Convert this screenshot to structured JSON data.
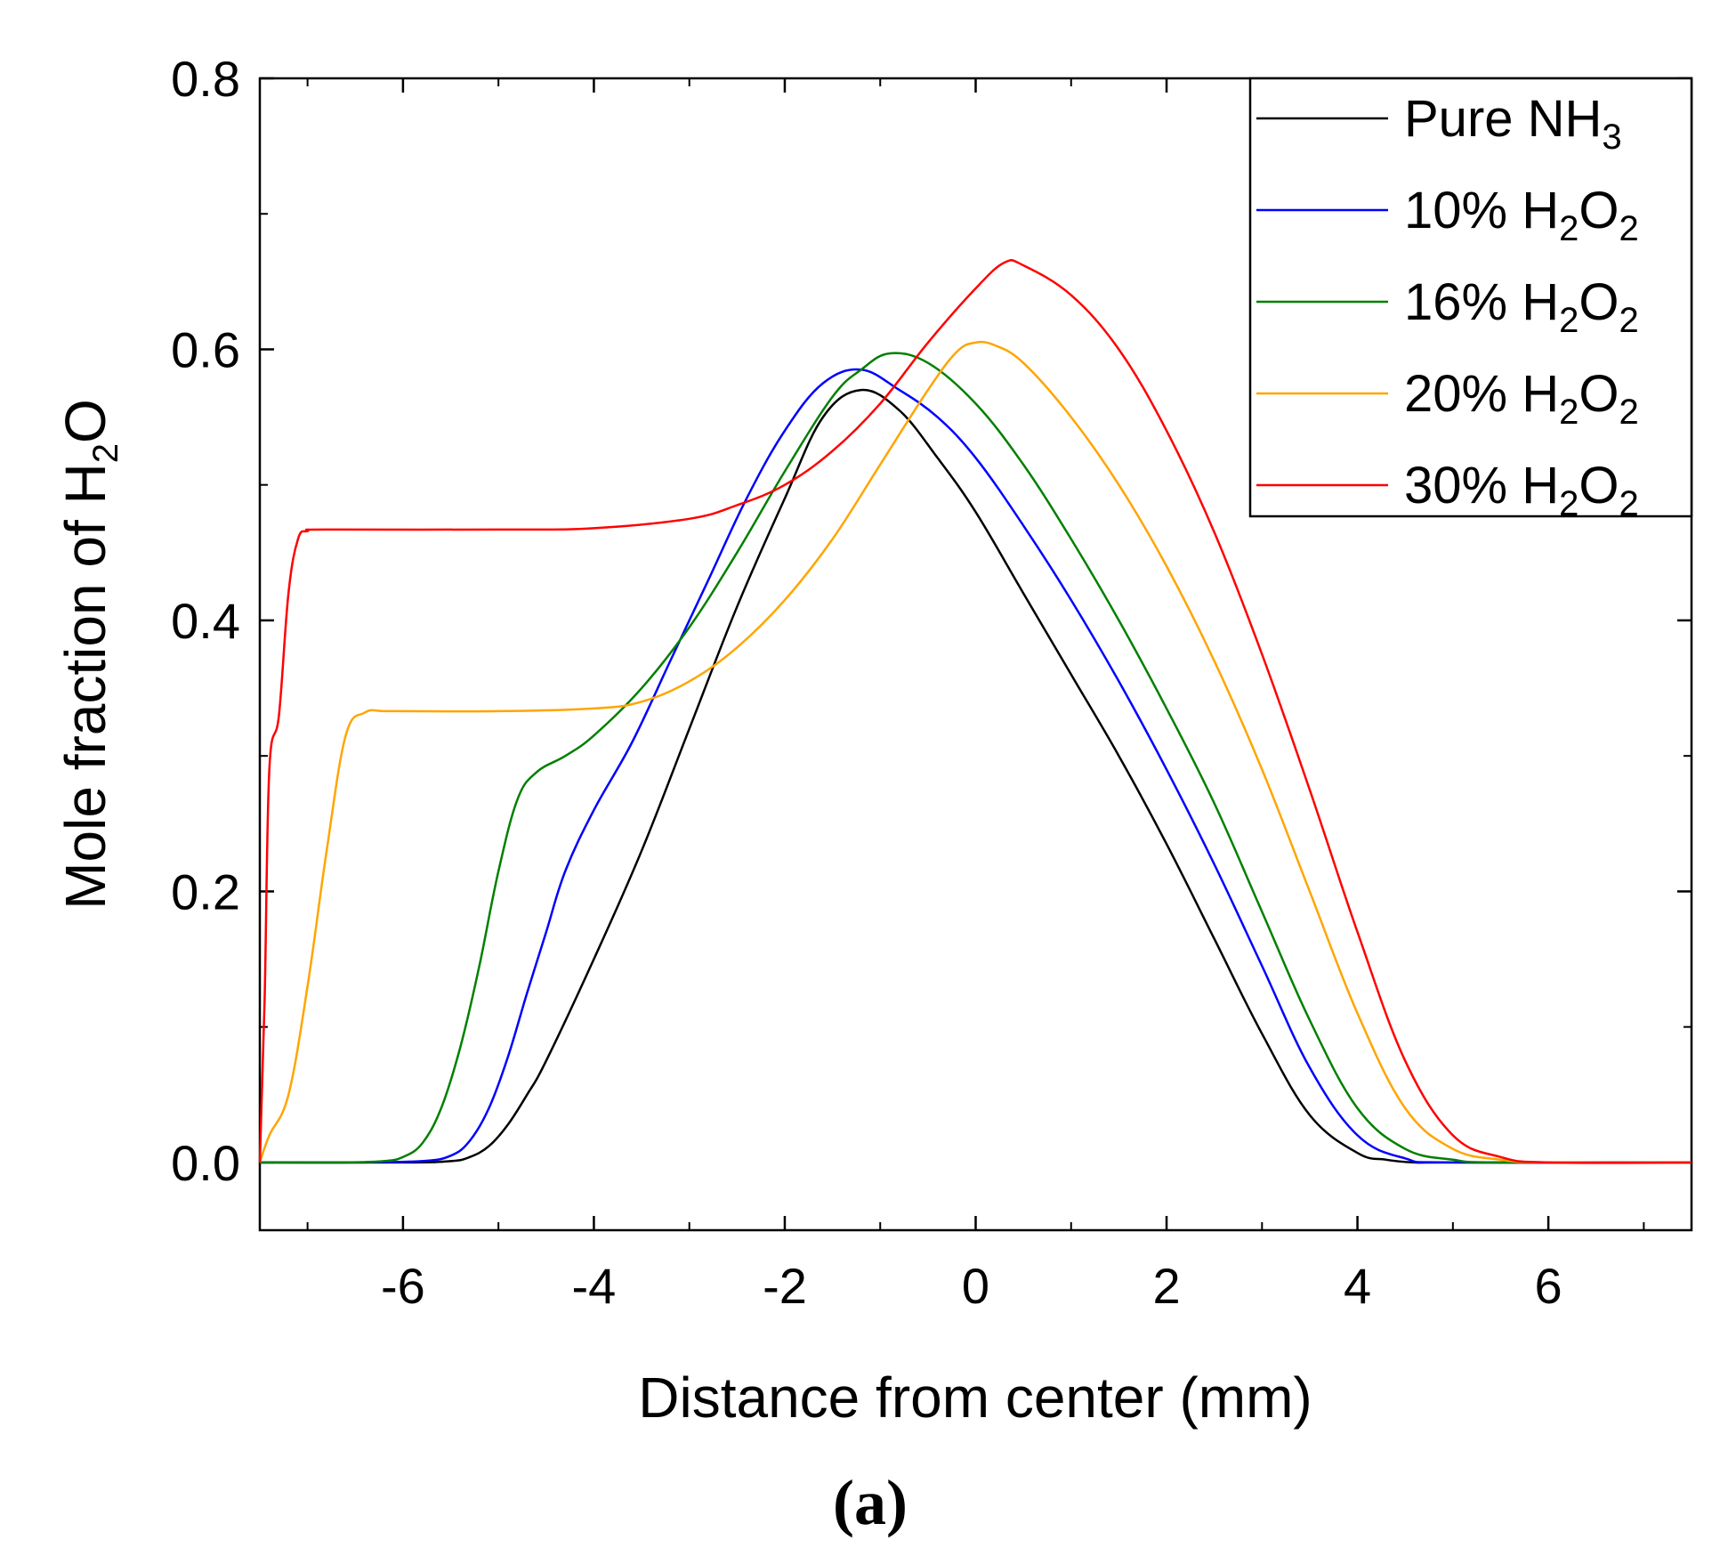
{
  "chart_data": {
    "type": "line",
    "title": "",
    "xlabel": "Distance from center (mm)",
    "ylabel": {
      "main": "Mole fraction of H",
      "sub": "2",
      "tail": "O"
    },
    "panel_label": "(a)",
    "xlim": [
      -7.5,
      7.5
    ],
    "ylim": [
      -0.05,
      0.8
    ],
    "xticks": [
      -6,
      -4,
      -2,
      0,
      2,
      4,
      6
    ],
    "xtick_labels": [
      "-6",
      "-4",
      "-2",
      "0",
      "2",
      "4",
      "6"
    ],
    "yticks": [
      0.0,
      0.2,
      0.4,
      0.6,
      0.8
    ],
    "ytick_labels": [
      "0.0",
      "0.2",
      "0.4",
      "0.6",
      "0.8"
    ],
    "grid": false,
    "legend_position": "top-right",
    "series": [
      {
        "name": "Pure NH3",
        "label_main": "Pure NH",
        "label_sub1": "3",
        "label_mid": "",
        "label_sub2": "",
        "color": "#000000",
        "x": [
          -7.5,
          -6.0,
          -5.5,
          -5.3,
          -5.1,
          -4.9,
          -4.7,
          -4.5,
          -4.0,
          -3.5,
          -3.0,
          -2.5,
          -2.0,
          -1.6,
          -1.2,
          -0.8,
          -0.4,
          0.0,
          0.5,
          1.0,
          1.5,
          2.0,
          2.5,
          3.0,
          3.5,
          4.0,
          4.3,
          4.6,
          5.0,
          7.5
        ],
        "y": [
          0.0,
          0.0,
          0.001,
          0.004,
          0.012,
          0.028,
          0.05,
          0.075,
          0.15,
          0.23,
          0.32,
          0.41,
          0.49,
          0.55,
          0.57,
          0.555,
          0.52,
          0.48,
          0.42,
          0.36,
          0.3,
          0.235,
          0.165,
          0.095,
          0.035,
          0.007,
          0.002,
          0.0,
          0.0,
          0.0
        ]
      },
      {
        "name": "10% H2O2",
        "label_main": "10% H",
        "label_sub1": "2",
        "label_mid": "O",
        "label_sub2": "2",
        "color": "#0000ff",
        "x": [
          -7.5,
          -6.5,
          -5.8,
          -5.5,
          -5.3,
          -5.1,
          -4.9,
          -4.7,
          -4.5,
          -4.3,
          -4.0,
          -3.6,
          -3.2,
          -2.8,
          -2.4,
          -2.0,
          -1.6,
          -1.2,
          -0.8,
          -0.4,
          0.0,
          0.5,
          1.0,
          1.5,
          2.0,
          2.5,
          3.0,
          3.5,
          4.0,
          4.5,
          5.0,
          7.5
        ],
        "y": [
          0.0,
          0.0,
          0.001,
          0.005,
          0.016,
          0.04,
          0.078,
          0.125,
          0.17,
          0.215,
          0.26,
          0.31,
          0.37,
          0.43,
          0.49,
          0.54,
          0.575,
          0.585,
          0.57,
          0.55,
          0.52,
          0.47,
          0.415,
          0.355,
          0.29,
          0.22,
          0.145,
          0.07,
          0.02,
          0.003,
          0.0,
          0.0
        ]
      },
      {
        "name": "16% H2O2",
        "label_main": "16% H",
        "label_sub1": "2",
        "label_mid": "O",
        "label_sub2": "2",
        "color": "#008000",
        "x": [
          -7.5,
          -6.6,
          -6.2,
          -6.0,
          -5.8,
          -5.6,
          -5.4,
          -5.2,
          -5.0,
          -4.8,
          -4.6,
          -4.3,
          -4.0,
          -3.5,
          -3.0,
          -2.5,
          -2.0,
          -1.5,
          -1.2,
          -0.9,
          -0.5,
          0.0,
          0.5,
          1.0,
          1.5,
          2.0,
          2.5,
          3.0,
          3.5,
          4.0,
          4.5,
          5.0,
          5.5,
          7.5
        ],
        "y": [
          0.0,
          0.0,
          0.001,
          0.004,
          0.014,
          0.04,
          0.085,
          0.145,
          0.215,
          0.268,
          0.288,
          0.3,
          0.315,
          0.35,
          0.395,
          0.45,
          0.51,
          0.565,
          0.585,
          0.597,
          0.59,
          0.56,
          0.515,
          0.46,
          0.4,
          0.335,
          0.265,
          0.185,
          0.105,
          0.04,
          0.01,
          0.002,
          0.0,
          0.0
        ]
      },
      {
        "name": "20% H2O2",
        "label_main": "20% H",
        "label_sub1": "2",
        "label_mid": "O",
        "label_sub2": "2",
        "color": "#ffa500",
        "x": [
          -7.5,
          -7.4,
          -7.2,
          -7.0,
          -6.8,
          -6.6,
          -6.4,
          -6.2,
          -6.0,
          -5.0,
          -4.0,
          -3.5,
          -3.0,
          -2.5,
          -2.0,
          -1.5,
          -1.0,
          -0.5,
          -0.2,
          0.0,
          0.2,
          0.5,
          1.0,
          1.5,
          2.0,
          2.5,
          3.0,
          3.5,
          4.0,
          4.5,
          5.0,
          5.5,
          6.0,
          7.5
        ],
        "y": [
          0.0,
          0.02,
          0.05,
          0.13,
          0.23,
          0.315,
          0.332,
          0.333,
          0.333,
          0.333,
          0.335,
          0.34,
          0.355,
          0.38,
          0.415,
          0.46,
          0.515,
          0.57,
          0.598,
          0.605,
          0.603,
          0.59,
          0.55,
          0.5,
          0.44,
          0.37,
          0.29,
          0.2,
          0.11,
          0.04,
          0.01,
          0.002,
          0.0,
          0.0
        ]
      },
      {
        "name": "30% H2O2",
        "label_main": "30% H",
        "label_sub1": "2",
        "label_mid": "O",
        "label_sub2": "2",
        "color": "#ff0000",
        "x": [
          -7.5,
          -7.45,
          -7.4,
          -7.3,
          -7.2,
          -7.1,
          -7.0,
          -6.8,
          -5.0,
          -4.0,
          -3.0,
          -2.5,
          -2.0,
          -1.5,
          -1.0,
          -0.5,
          0.0,
          0.3,
          0.5,
          1.0,
          1.5,
          2.0,
          2.5,
          3.0,
          3.5,
          4.0,
          4.5,
          5.0,
          5.5,
          6.0,
          7.5
        ],
        "y": [
          0.0,
          0.12,
          0.29,
          0.33,
          0.42,
          0.46,
          0.466,
          0.467,
          0.467,
          0.468,
          0.475,
          0.485,
          0.5,
          0.525,
          0.56,
          0.605,
          0.645,
          0.664,
          0.662,
          0.64,
          0.6,
          0.54,
          0.465,
          0.375,
          0.275,
          0.17,
          0.075,
          0.02,
          0.004,
          0.0,
          0.0
        ]
      }
    ]
  }
}
